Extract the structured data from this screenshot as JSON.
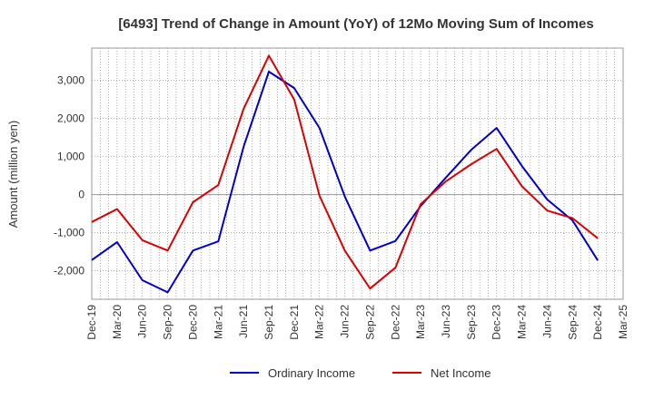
{
  "chart_data": {
    "type": "line",
    "title": "[6493]  Trend of Change in Amount (YoY) of 12Mo Moving Sum of Incomes",
    "xlabel": "",
    "ylabel": "Amount (million yen)",
    "ylim": [
      -2750,
      3850
    ],
    "yticks": [
      -2000,
      -1000,
      0,
      1000,
      2000,
      3000
    ],
    "ytick_labels": [
      "-2,000",
      "-1,000",
      "0",
      "1,000",
      "2,000",
      "3,000"
    ],
    "categories": [
      "Dec-19",
      "Mar-20",
      "Jun-20",
      "Sep-20",
      "Dec-20",
      "Mar-21",
      "Jun-21",
      "Sep-21",
      "Dec-21",
      "Mar-22",
      "Jun-22",
      "Sep-22",
      "Dec-22",
      "Mar-23",
      "Jun-23",
      "Sep-23",
      "Dec-23",
      "Mar-24",
      "Jun-24",
      "Sep-24",
      "Dec-24",
      "Mar-25"
    ],
    "grid": true,
    "legend_position": "bottom",
    "series": [
      {
        "name": "Ordinary Income",
        "color": "#0000cc",
        "values": [
          -1720,
          -1250,
          -2250,
          -2570,
          -1470,
          -1230,
          1250,
          3230,
          2800,
          1750,
          -50,
          -1470,
          -1220,
          -300,
          450,
          1180,
          1750,
          750,
          -130,
          -680,
          -1730,
          null
        ]
      },
      {
        "name": "Net Income",
        "color": "#dd0000",
        "values": [
          -720,
          -380,
          -1200,
          -1470,
          -200,
          250,
          2250,
          3650,
          2500,
          -30,
          -1470,
          -2470,
          -1920,
          -250,
          350,
          800,
          1200,
          220,
          -420,
          -620,
          -1150,
          null
        ]
      }
    ]
  }
}
